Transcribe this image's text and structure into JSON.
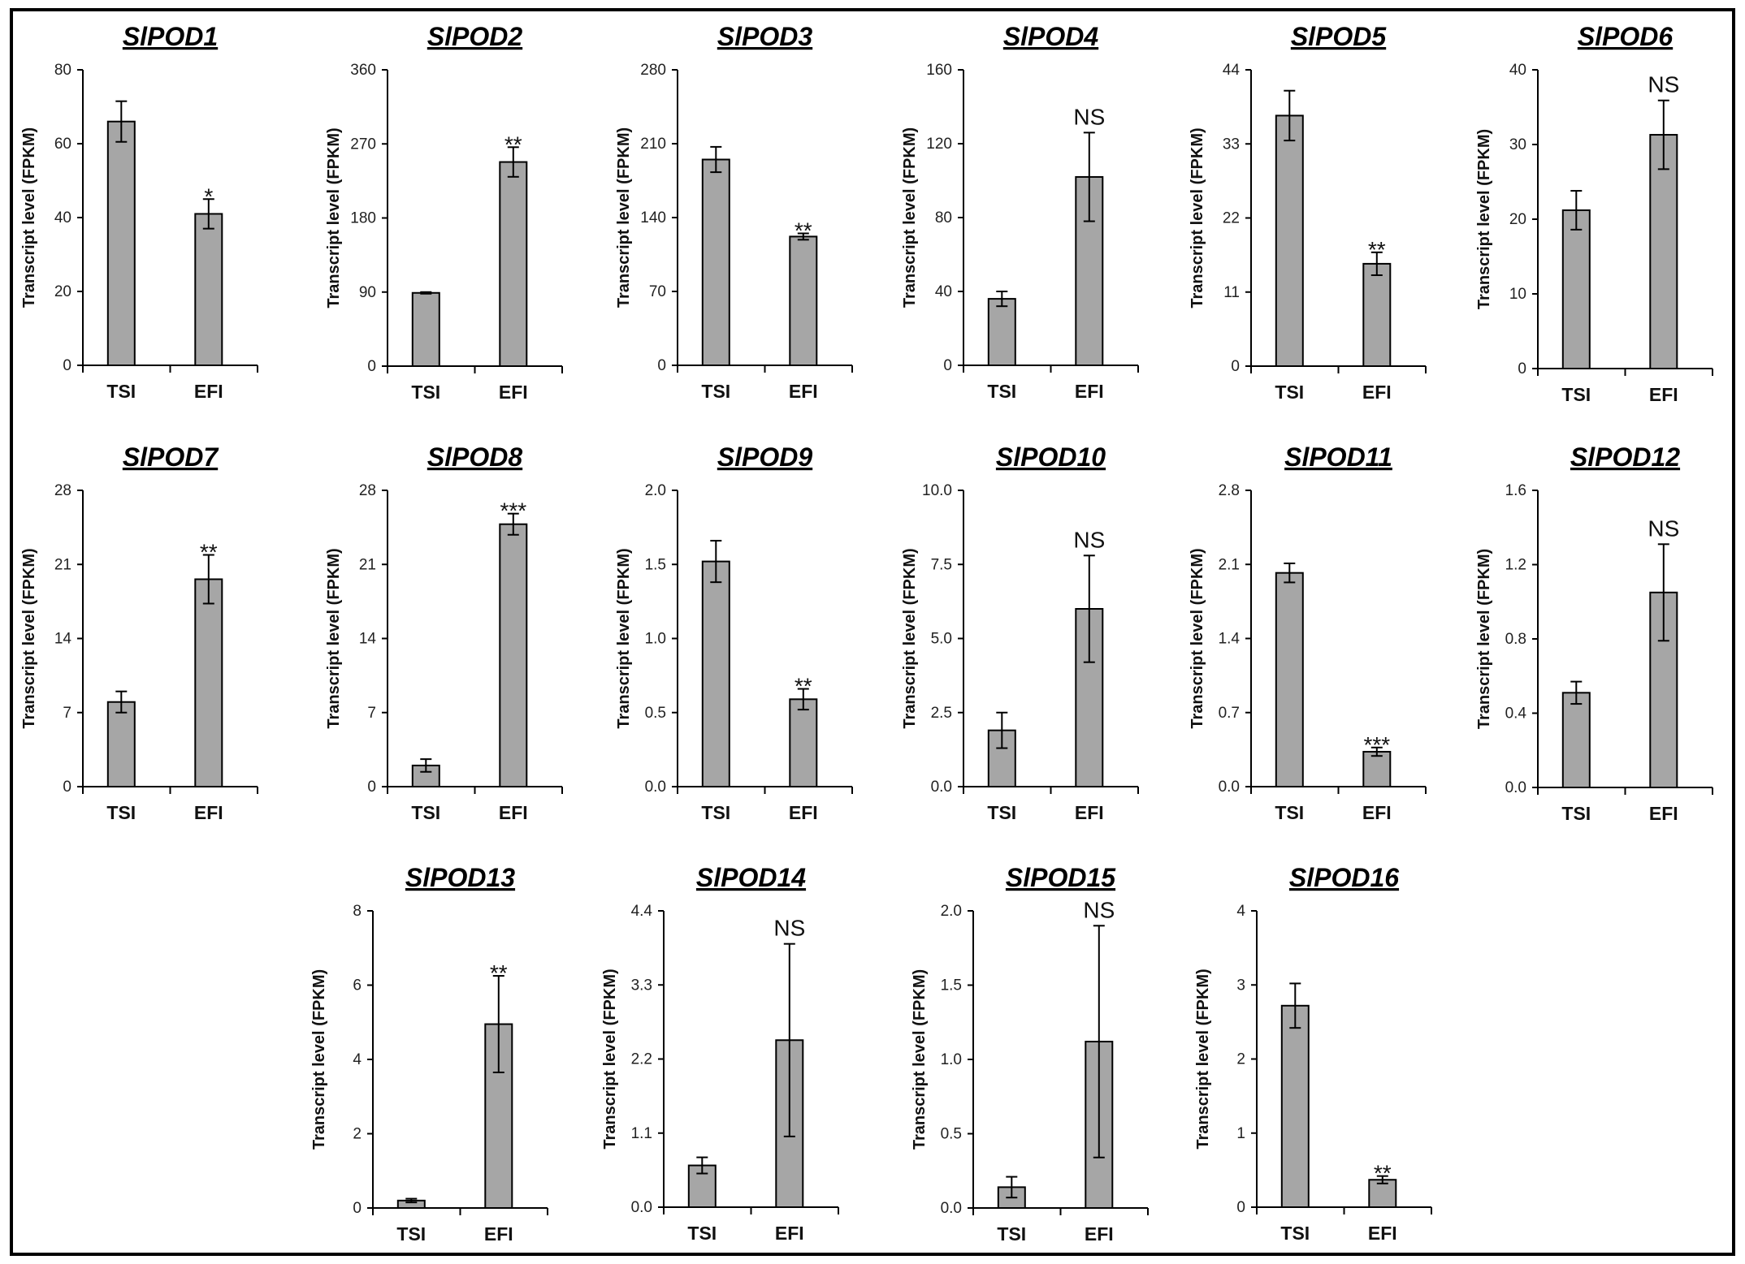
{
  "figure": {
    "border_color": "#000000",
    "bar_color": "#a6a6a6",
    "bar_stroke": "#000000",
    "axis_color": "#000000"
  },
  "chart_data": [
    {
      "type": "bar",
      "title": "SlPOD1",
      "ylabel": "Transcript level (FPKM)",
      "xlabel": "",
      "categories": [
        "TSI",
        "EFI"
      ],
      "values": [
        66,
        41
      ],
      "errors": [
        5.5,
        4
      ],
      "significance": "*",
      "ylim": [
        0,
        80
      ],
      "yticks": [
        "0",
        "20",
        "40",
        "60",
        "80"
      ]
    },
    {
      "type": "bar",
      "title": "SlPOD2",
      "ylabel": "Transcript level (FPKM)",
      "xlabel": "",
      "categories": [
        "TSI",
        "EFI"
      ],
      "values": [
        89,
        248
      ],
      "errors": [
        1,
        18
      ],
      "significance": "**",
      "ylim": [
        0,
        360
      ],
      "yticks": [
        "0",
        "90",
        "180",
        "270",
        "360"
      ]
    },
    {
      "type": "bar",
      "title": "SlPOD3",
      "ylabel": "Transcript level (FPKM)",
      "xlabel": "",
      "categories": [
        "TSI",
        "EFI"
      ],
      "values": [
        195,
        122
      ],
      "errors": [
        12,
        3
      ],
      "significance": "**",
      "ylim": [
        0,
        280
      ],
      "yticks": [
        "0",
        "70",
        "140",
        "210",
        "280"
      ]
    },
    {
      "type": "bar",
      "title": "SlPOD4",
      "ylabel": "Transcript level (FPKM)",
      "xlabel": "",
      "categories": [
        "TSI",
        "EFI"
      ],
      "values": [
        36,
        102
      ],
      "errors": [
        4,
        24
      ],
      "significance": "NS",
      "ylim": [
        0,
        160
      ],
      "yticks": [
        "0",
        "40",
        "80",
        "120",
        "160"
      ]
    },
    {
      "type": "bar",
      "title": "SlPOD5",
      "ylabel": "Transcript level (FPKM)",
      "xlabel": "",
      "categories": [
        "TSI",
        "EFI"
      ],
      "values": [
        37.2,
        15.2
      ],
      "errors": [
        3.7,
        1.7
      ],
      "significance": "**",
      "ylim": [
        0,
        44
      ],
      "yticks": [
        "0",
        "11",
        "22",
        "33",
        "44"
      ]
    },
    {
      "type": "bar",
      "title": "SlPOD6",
      "ylabel": "Transcript level (FPKM)",
      "xlabel": "",
      "categories": [
        "TSI",
        "EFI"
      ],
      "values": [
        21.2,
        31.3
      ],
      "errors": [
        2.6,
        4.6
      ],
      "significance": "NS",
      "ylim": [
        0,
        40
      ],
      "yticks": [
        "0",
        "10",
        "20",
        "30",
        "40"
      ]
    },
    {
      "type": "bar",
      "title": "SlPOD7",
      "ylabel": "Transcript level (FPKM)",
      "xlabel": "",
      "categories": [
        "TSI",
        "EFI"
      ],
      "values": [
        8,
        19.6
      ],
      "errors": [
        1,
        2.3
      ],
      "significance": "**",
      "ylim": [
        0,
        28
      ],
      "yticks": [
        "0",
        "7",
        "14",
        "21",
        "28"
      ]
    },
    {
      "type": "bar",
      "title": "SlPOD8",
      "ylabel": "Transcript level (FPKM)",
      "xlabel": "",
      "categories": [
        "TSI",
        "EFI"
      ],
      "values": [
        2,
        24.8
      ],
      "errors": [
        0.6,
        1
      ],
      "significance": "***",
      "ylim": [
        0,
        28
      ],
      "yticks": [
        "0",
        "7",
        "14",
        "21",
        "28"
      ]
    },
    {
      "type": "bar",
      "title": "SlPOD9",
      "ylabel": "Transcript level (FPKM)",
      "xlabel": "",
      "categories": [
        "TSI",
        "EFI"
      ],
      "values": [
        1.52,
        0.59
      ],
      "errors": [
        0.14,
        0.07
      ],
      "significance": "**",
      "ylim": [
        0,
        2.0
      ],
      "yticks": [
        "0.0",
        "0.5",
        "1.0",
        "1.5",
        "2.0"
      ]
    },
    {
      "type": "bar",
      "title": "SlPOD10",
      "ylabel": "Transcript level (FPKM)",
      "xlabel": "",
      "categories": [
        "TSI",
        "EFI"
      ],
      "values": [
        1.9,
        6.0
      ],
      "errors": [
        0.6,
        1.8
      ],
      "significance": "NS",
      "ylim": [
        0,
        10.0
      ],
      "yticks": [
        "0.0",
        "2.5",
        "5.0",
        "7.5",
        "10.0"
      ]
    },
    {
      "type": "bar",
      "title": "SlPOD11",
      "ylabel": "Transcript level (FPKM)",
      "xlabel": "",
      "categories": [
        "TSI",
        "EFI"
      ],
      "values": [
        2.02,
        0.33
      ],
      "errors": [
        0.09,
        0.04
      ],
      "significance": "***",
      "ylim": [
        0,
        2.8
      ],
      "yticks": [
        "0.0",
        "0.7",
        "1.4",
        "2.1",
        "2.8"
      ]
    },
    {
      "type": "bar",
      "title": "SlPOD12",
      "ylabel": "Transcript level (FPKM)",
      "xlabel": "",
      "categories": [
        "TSI",
        "EFI"
      ],
      "values": [
        0.51,
        1.05
      ],
      "errors": [
        0.06,
        0.26
      ],
      "significance": "NS",
      "ylim": [
        0,
        1.6
      ],
      "yticks": [
        "0.0",
        "0.4",
        "0.8",
        "1.2",
        "1.6"
      ]
    },
    {
      "type": "bar",
      "title": "SlPOD13",
      "ylabel": "Transcript level (FPKM)",
      "xlabel": "",
      "categories": [
        "TSI",
        "EFI"
      ],
      "values": [
        0.2,
        4.95
      ],
      "errors": [
        0.05,
        1.3
      ],
      "significance": "**",
      "ylim": [
        0,
        8
      ],
      "yticks": [
        "0",
        "2",
        "4",
        "6",
        "8"
      ]
    },
    {
      "type": "bar",
      "title": "SlPOD14",
      "ylabel": "Transcript level (FPKM)",
      "xlabel": "",
      "categories": [
        "TSI",
        "EFI"
      ],
      "values": [
        0.62,
        2.48
      ],
      "errors": [
        0.12,
        1.43
      ],
      "significance": "NS",
      "ylim": [
        0,
        4.4
      ],
      "yticks": [
        "0.0",
        "1.1",
        "2.2",
        "3.3",
        "4.4"
      ]
    },
    {
      "type": "bar",
      "title": "SlPOD15",
      "ylabel": "Transcript level (FPKM)",
      "xlabel": "",
      "categories": [
        "TSI",
        "EFI"
      ],
      "values": [
        0.14,
        1.12
      ],
      "errors": [
        0.07,
        0.78
      ],
      "significance": "NS",
      "ylim": [
        0,
        2.0
      ],
      "yticks": [
        "0.0",
        "0.5",
        "1.0",
        "1.5",
        "2.0"
      ]
    },
    {
      "type": "bar",
      "title": "SlPOD16",
      "ylabel": "Transcript level (FPKM)",
      "xlabel": "",
      "categories": [
        "TSI",
        "EFI"
      ],
      "values": [
        2.72,
        0.37
      ],
      "errors": [
        0.3,
        0.05
      ],
      "significance": "**",
      "ylim": [
        0,
        4
      ],
      "yticks": [
        "0",
        "1",
        "2",
        "3",
        "4"
      ]
    }
  ]
}
